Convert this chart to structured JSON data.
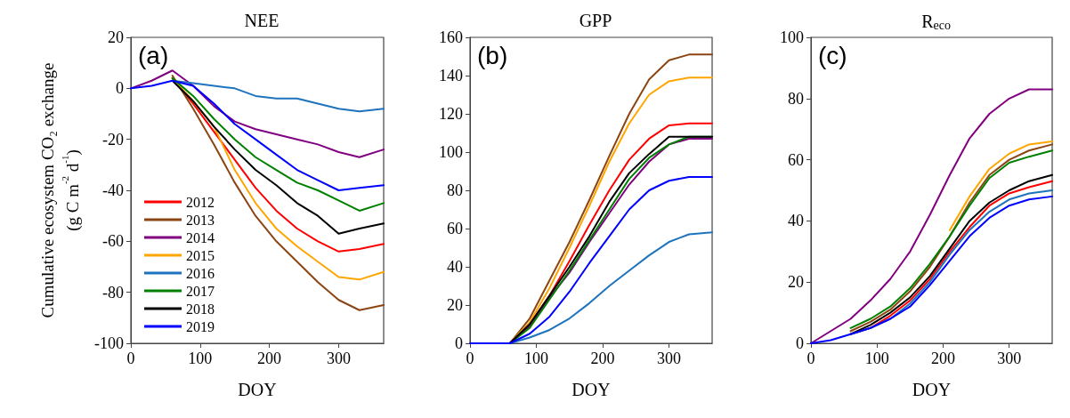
{
  "chart_data": [
    {
      "type": "line",
      "title": "NEE",
      "xlabel": "DOY",
      "ylabel": "Cumulative ecosystem CO₂ exchange\n(g C m$^{-2}$ d$^{-1}$)",
      "annotations": [
        "(a)"
      ],
      "x": [
        60,
        90,
        120,
        150,
        180,
        210,
        240,
        270,
        300,
        330,
        365
      ],
      "xlim": [
        0,
        365
      ],
      "xticks": [
        0,
        100,
        200,
        300
      ],
      "ylim": [
        -100,
        20
      ],
      "yticks": [
        -100,
        -80,
        -60,
        -40,
        -20,
        0,
        20
      ],
      "grid": false,
      "legend": "bottom left",
      "marker": "none",
      "line_style": "solid",
      "series": [
        {
          "name": "2012",
          "color": "#ff0000",
          "values": [
            4,
            -6,
            -17,
            -28,
            -39,
            -48,
            -55,
            -60,
            -64,
            -63,
            -61
          ]
        },
        {
          "name": "2013",
          "color": "#8b4513",
          "values": [
            5,
            -8,
            -22,
            -37,
            -50,
            -60,
            -68,
            -76,
            -83,
            -87,
            -85
          ]
        },
        {
          "name": "2014",
          "color": "#800080",
          "x": [
            0,
            30,
            60,
            90,
            120,
            150,
            180,
            210,
            240,
            270,
            300,
            330,
            365
          ],
          "values": [
            0,
            3,
            7,
            1,
            -7,
            -13,
            -16,
            -18,
            -20,
            -22,
            -25,
            -27,
            -24
          ]
        },
        {
          "name": "2015",
          "color": "#ffa500",
          "values": [
            4,
            -5,
            -15,
            -32,
            -45,
            -55,
            -62,
            -68,
            -74,
            -75,
            -72
          ]
        },
        {
          "name": "2016",
          "color": "#1e73be",
          "values": [
            3,
            2,
            1,
            0,
            -3,
            -4,
            -4,
            -6,
            -8,
            -9,
            -8
          ]
        },
        {
          "name": "2017",
          "color": "#008000",
          "values": [
            4,
            -3,
            -12,
            -20,
            -27,
            -32,
            -37,
            -40,
            -44,
            -48,
            -45
          ]
        },
        {
          "name": "2018",
          "color": "#000000",
          "values": [
            3,
            -5,
            -15,
            -24,
            -32,
            -38,
            -45,
            -50,
            -57,
            -55,
            -53
          ]
        },
        {
          "name": "2019",
          "color": "#0000ff",
          "x": [
            0,
            30,
            60,
            90,
            120,
            150,
            180,
            210,
            240,
            270,
            300,
            330,
            365
          ],
          "values": [
            0,
            1,
            3,
            1,
            -6,
            -14,
            -20,
            -26,
            -32,
            -36,
            -40,
            -39,
            -38
          ]
        }
      ]
    },
    {
      "type": "line",
      "title": "GPP",
      "xlabel": "DOY",
      "annotations": [
        "(b)"
      ],
      "x": [
        60,
        90,
        120,
        150,
        180,
        210,
        240,
        270,
        300,
        330,
        365
      ],
      "xlim": [
        0,
        365
      ],
      "xticks": [
        0,
        100,
        200,
        300
      ],
      "ylim": [
        0,
        160
      ],
      "yticks": [
        0,
        20,
        40,
        60,
        80,
        100,
        120,
        140,
        160
      ],
      "grid": false,
      "legend": false,
      "marker": "none",
      "line_style": "solid",
      "series": [
        {
          "color": "#ff0000",
          "values": [
            0,
            10,
            25,
            43,
            62,
            80,
            96,
            107,
            114,
            115,
            115
          ]
        },
        {
          "color": "#8b4513",
          "values": [
            0,
            13,
            33,
            53,
            75,
            98,
            120,
            138,
            148,
            151,
            151
          ]
        },
        {
          "color": "#800080",
          "values": [
            0,
            9,
            24,
            37,
            53,
            68,
            83,
            95,
            104,
            107,
            107
          ]
        },
        {
          "color": "#ffa500",
          "values": [
            0,
            11,
            29,
            50,
            72,
            95,
            115,
            130,
            137,
            139,
            139
          ]
        },
        {
          "color": "#1e73be",
          "values": [
            0,
            3,
            7,
            13,
            21,
            30,
            38,
            46,
            53,
            57,
            58
          ]
        },
        {
          "color": "#008000",
          "values": [
            0,
            8,
            23,
            38,
            54,
            70,
            86,
            97,
            104,
            108,
            108
          ]
        },
        {
          "color": "#000000",
          "values": [
            0,
            10,
            25,
            40,
            56,
            74,
            89,
            99,
            108,
            108,
            108
          ]
        },
        {
          "color": "#0000ff",
          "x": [
            0,
            30,
            60,
            90,
            120,
            150,
            180,
            210,
            240,
            270,
            300,
            330,
            365
          ],
          "values": [
            0,
            0,
            0,
            5,
            14,
            27,
            42,
            56,
            70,
            80,
            85,
            87,
            87
          ]
        }
      ]
    },
    {
      "type": "line",
      "title": "R$_{eco}$",
      "xlabel": "DOY",
      "annotations": [
        "(c)"
      ],
      "x": [
        60,
        90,
        120,
        150,
        180,
        210,
        240,
        270,
        300,
        330,
        365
      ],
      "xlim": [
        0,
        365
      ],
      "xticks": [
        0,
        100,
        200,
        300
      ],
      "ylim": [
        0,
        100
      ],
      "yticks": [
        0,
        20,
        40,
        60,
        80,
        100
      ],
      "grid": false,
      "legend": false,
      "marker": "none",
      "line_style": "solid",
      "series": [
        {
          "color": "#ff0000",
          "values": [
            3,
            5,
            9,
            14,
            21,
            30,
            38,
            45,
            49,
            51,
            53
          ]
        },
        {
          "color": "#8b4513",
          "values": [
            4,
            7,
            11,
            17,
            25,
            35,
            46,
            55,
            60,
            63,
            65
          ]
        },
        {
          "color": "#800080",
          "x": [
            0,
            30,
            60,
            90,
            120,
            150,
            180,
            210,
            240,
            270,
            300,
            330,
            365
          ],
          "values": [
            0,
            4,
            8,
            14,
            21,
            30,
            42,
            55,
            67,
            75,
            80,
            83,
            83
          ]
        },
        {
          "color": "#ffa500",
          "x": [
            210,
            240,
            270,
            300,
            330,
            365
          ],
          "values": [
            37,
            48,
            57,
            62,
            65,
            66
          ]
        },
        {
          "color": "#1e73be",
          "values": [
            3,
            5,
            8,
            13,
            20,
            29,
            37,
            43,
            47,
            49,
            50
          ]
        },
        {
          "color": "#008000",
          "values": [
            5,
            8,
            12,
            18,
            26,
            35,
            45,
            54,
            59,
            61,
            63
          ]
        },
        {
          "color": "#000000",
          "values": [
            3,
            6,
            10,
            15,
            22,
            31,
            40,
            46,
            50,
            53,
            55
          ]
        },
        {
          "color": "#0000ff",
          "x": [
            0,
            30,
            60,
            90,
            120,
            150,
            180,
            210,
            240,
            270,
            300,
            330,
            365
          ],
          "values": [
            0,
            1,
            3,
            5,
            8,
            12,
            19,
            27,
            35,
            41,
            45,
            47,
            48
          ]
        }
      ]
    }
  ]
}
